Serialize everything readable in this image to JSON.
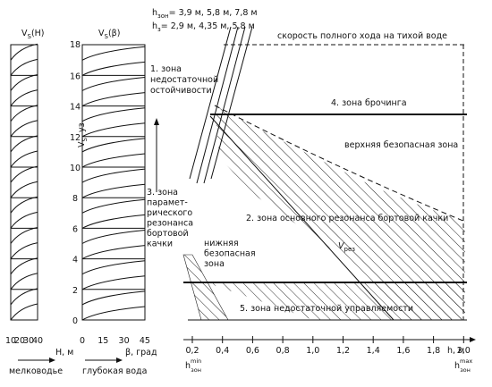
{
  "panels": {
    "left_title": "V",
    "left_title_sub": "S",
    "left_title_arg": "(H)",
    "mid_title": "V",
    "mid_title_sub": "S",
    "mid_title_arg": "(β)",
    "y_ticks": [
      "0",
      "2",
      "4",
      "6",
      "8",
      "10",
      "12",
      "14",
      "16"
    ],
    "y_top_tick": "18",
    "y_axis_label": "V",
    "y_axis_sub": "S",
    "y_axis_unit": ", уз",
    "h_ticks": [
      "10",
      "20",
      "30",
      "40"
    ],
    "h_axis_label": "H, м",
    "h_axis_caption": "мелководье",
    "beta_ticks": [
      "0",
      "15",
      "30",
      "45"
    ],
    "beta_axis_label": "β, град",
    "beta_axis_caption": "глубокая вода"
  },
  "main": {
    "h_header_1": "h",
    "h_header_1_sub": "зон",
    "h_header_1_values": "= 3,9 м, 5,8 м, 7,8 м",
    "h_header_2": "h",
    "h_header_2_sub": "з",
    "h_header_2_values": "= 2,9 м, 4,35 м, 5,8 м",
    "full_speed_label": "скорость полного хода на тихой воде",
    "zone_1": [
      "1. зона",
      "недостаточной",
      "остойчивости"
    ],
    "zone_4": "4. зона брочинга",
    "upper_safe": "верхняя безопасная зона",
    "zone_3": [
      "3. зона",
      "парамет-",
      "рического",
      "резонанса",
      "бортовой",
      "качки"
    ],
    "zone_2": "2. зона основного резонанса бортовой качки",
    "v_res": "V",
    "v_res_sub": "рез",
    "lower_safe": [
      "нижняя",
      "безопасная",
      "зона"
    ],
    "zone_5": "5. зона недостаточной управляемости",
    "x_ticks": [
      "0,2",
      "0,4",
      "0,6",
      "0,8",
      "1,0",
      "1,2",
      "1,4",
      "1,6",
      "1,8",
      "2,0"
    ],
    "x_axis_label": "h, м",
    "h_min": "h",
    "h_min_sup": "min",
    "h_min_sub": "зон",
    "h_max": "h",
    "h_max_sup": "max",
    "h_max_sub": "зон"
  }
}
